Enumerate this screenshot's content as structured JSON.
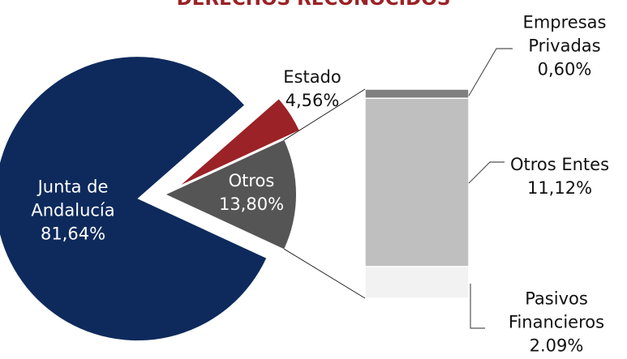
{
  "chart_data": {
    "type": "pie",
    "title": "DERECHOS RECONOCIDOS",
    "pie": {
      "categories": [
        "Junta de Andalucía",
        "Estado",
        "Otros"
      ],
      "values": [
        81.64,
        4.56,
        13.8
      ],
      "value_labels": [
        "81,64%",
        "4,56%",
        "13,80%"
      ],
      "colors": [
        "#0e2a5c",
        "#9b2226",
        "#555555"
      ]
    },
    "bar": {
      "categories": [
        "Empresas Privadas",
        "Otros Entes",
        "Pasivos Financieros"
      ],
      "values": [
        0.6,
        11.12,
        2.09
      ],
      "value_labels": [
        "0,60%",
        "11,12%",
        "2.09%"
      ],
      "colors": [
        "#808080",
        "#bfbfbf",
        "#f2f2f2"
      ]
    }
  }
}
